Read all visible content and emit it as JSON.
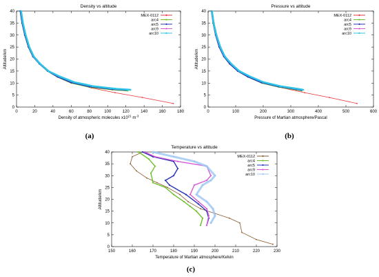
{
  "captions": {
    "a": "(a)",
    "b": "(b)",
    "c": "(c)"
  },
  "colors": {
    "MEX-0112": "#e8333b",
    "arc4": "#6cbf2a",
    "arc5": "#2530b8",
    "arc9": "#d65ad6",
    "arc10": "#2ec4e6",
    "MEX-0112-temp": "#8a5a2b",
    "arc10-temp": "#9cc6f4"
  },
  "chart_data": [
    {
      "type": "line",
      "title": "Density vs altitude",
      "xlabel": "Density of atmospheric molecules x10",
      "xlabel_exp": "21",
      "xlabel_unit": "m",
      "xlabel_unit_exp": "-3",
      "ylabel": "Altitude/km",
      "xlim": [
        0,
        180
      ],
      "ylim": [
        0,
        40
      ],
      "xticks": [
        0,
        20,
        40,
        60,
        80,
        100,
        120,
        140,
        160,
        180
      ],
      "yticks": [
        0,
        5,
        10,
        15,
        20,
        25,
        30,
        35,
        40
      ],
      "legend_position": "top-right",
      "series": [
        {
          "name": "MEX-0112",
          "x": [
            5,
            7,
            10,
            14,
            19,
            26,
            35,
            46,
            62,
            82,
            108,
            138,
            172
          ],
          "y": [
            40,
            35,
            30,
            25,
            21,
            18,
            15,
            12.5,
            10,
            8,
            6,
            4,
            1.5
          ]
        },
        {
          "name": "arc4",
          "x": [
            4,
            6,
            9,
            13,
            18,
            25,
            34,
            45,
            60,
            80,
            105,
            122
          ],
          "y": [
            40,
            35,
            30,
            25,
            21,
            18,
            15,
            12.5,
            10,
            8.3,
            7.2,
            6.8
          ]
        },
        {
          "name": "arc5",
          "x": [
            4,
            6,
            9,
            13,
            18,
            25,
            34,
            45,
            60,
            80,
            105,
            120
          ],
          "y": [
            40,
            35,
            30,
            25,
            21,
            18,
            15,
            12.6,
            10.2,
            8.5,
            7.4,
            7
          ]
        },
        {
          "name": "arc9",
          "x": [
            5,
            7,
            10,
            14,
            19,
            26,
            35,
            47,
            63,
            83,
            108,
            124
          ],
          "y": [
            40,
            35,
            30,
            25,
            21,
            18,
            15,
            12.8,
            10.4,
            8.7,
            7.6,
            7.2
          ]
        },
        {
          "name": "arc10",
          "x": [
            5,
            7,
            10,
            14,
            19,
            26,
            35,
            47,
            63,
            84,
            109,
            125
          ],
          "y": [
            40,
            35,
            30,
            25,
            21,
            18,
            15,
            12.8,
            10.4,
            8.7,
            7.6,
            7.2
          ]
        }
      ]
    },
    {
      "type": "line",
      "title": "Pressure vs altitude",
      "xlabel": "Pressure of Martian atmosphere/Pascal",
      "ylabel": "Altitude/km",
      "xlim": [
        0,
        600
      ],
      "ylim": [
        0,
        40
      ],
      "xticks": [
        0,
        100,
        200,
        300,
        400,
        500,
        600
      ],
      "yticks": [
        0,
        5,
        10,
        15,
        20,
        25,
        30,
        35,
        40
      ],
      "legend_position": "top-right",
      "series": [
        {
          "name": "MEX-0112",
          "x": [
            15,
            22,
            32,
            46,
            63,
            86,
            116,
            154,
            205,
            270,
            350,
            440,
            540
          ],
          "y": [
            40,
            35,
            30,
            25,
            21,
            18,
            15,
            12.5,
            10,
            8,
            6,
            4,
            1.5
          ]
        },
        {
          "name": "arc4",
          "x": [
            12,
            18,
            28,
            41,
            58,
            80,
            109,
            146,
            195,
            258,
            320,
            340
          ],
          "y": [
            40,
            35,
            30,
            25,
            21,
            18,
            15,
            12.5,
            10,
            8.3,
            7.2,
            6.8
          ]
        },
        {
          "name": "arc5",
          "x": [
            12,
            18,
            27,
            40,
            57,
            78,
            107,
            144,
            193,
            255,
            318,
            338
          ],
          "y": [
            40,
            35,
            30,
            25,
            21,
            18,
            15,
            12.6,
            10.2,
            8.5,
            7.4,
            7
          ]
        },
        {
          "name": "arc9",
          "x": [
            14,
            20,
            30,
            44,
            61,
            84,
            113,
            151,
            200,
            262,
            325,
            345
          ],
          "y": [
            40,
            35,
            30,
            25,
            21,
            18,
            15,
            12.8,
            10.4,
            8.7,
            7.6,
            7.2
          ]
        },
        {
          "name": "arc10",
          "x": [
            14,
            20,
            30,
            44,
            61,
            84,
            113,
            151,
            200,
            262,
            325,
            345
          ],
          "y": [
            40,
            35,
            30,
            25,
            21,
            18,
            15,
            12.8,
            10.4,
            8.7,
            7.6,
            7.2
          ]
        }
      ]
    },
    {
      "type": "line",
      "title": "Temperature vs altitude",
      "xlabel": "Temperature of Martian atmosphere/Kelvin",
      "ylabel": "Altitude/km",
      "xlim": [
        150,
        230
      ],
      "ylim": [
        0,
        40
      ],
      "xticks": [
        150,
        160,
        170,
        180,
        190,
        200,
        210,
        220,
        230
      ],
      "yticks": [
        0,
        5,
        10,
        15,
        20,
        25,
        30,
        35,
        40
      ],
      "legend_position": "top-right",
      "series": [
        {
          "name": "MEX-0112",
          "x": [
            165,
            160,
            159,
            162,
            167,
            172,
            177,
            183,
            187,
            193,
            200,
            207,
            212,
            213,
            220,
            228
          ],
          "y": [
            40,
            38,
            35,
            32,
            29,
            27,
            25,
            22,
            19,
            16,
            14,
            12,
            10,
            6,
            3,
            1
          ]
        },
        {
          "name": "arc4",
          "x": [
            163,
            168,
            171,
            169,
            170,
            176,
            180,
            185,
            188,
            191,
            194,
            193
          ],
          "y": [
            40,
            37,
            34,
            31,
            27,
            25,
            22,
            19,
            17,
            15,
            12,
            9
          ]
        },
        {
          "name": "arc5",
          "x": [
            165,
            170,
            180,
            182,
            180,
            176,
            178,
            186,
            192,
            196,
            197,
            196
          ],
          "y": [
            40,
            38,
            36,
            33,
            30,
            28,
            26,
            22,
            18,
            15,
            12,
            9
          ]
        },
        {
          "name": "arc9",
          "x": [
            166,
            171,
            182,
            196,
            198,
            196,
            190,
            188,
            192,
            196,
            197,
            196
          ],
          "y": [
            40,
            38,
            36,
            34,
            30,
            28,
            26,
            22,
            19,
            16,
            13,
            9
          ]
        },
        {
          "name": "arc10",
          "x": [
            170,
            180,
            190,
            196,
            200,
            198,
            194,
            191,
            196,
            199,
            200,
            198
          ],
          "y": [
            40,
            38,
            36,
            34,
            30,
            28,
            26,
            22,
            19,
            16,
            13,
            10
          ]
        }
      ]
    }
  ]
}
